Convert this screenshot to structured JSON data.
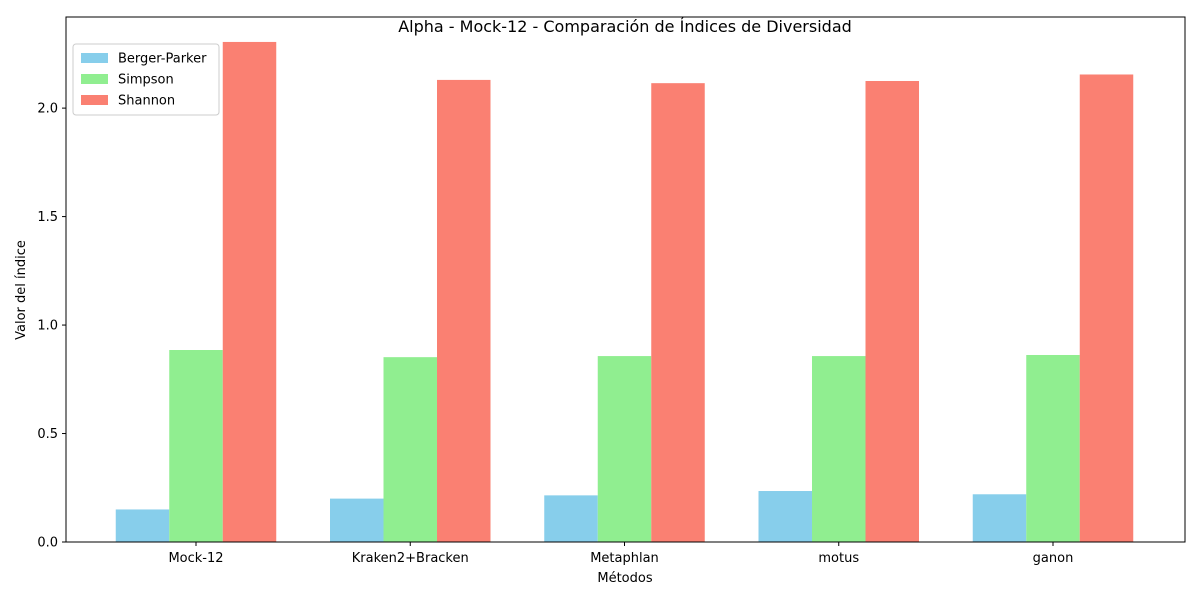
{
  "chart_data": {
    "type": "bar",
    "title": "Alpha - Mock-12 - Comparación de Índices de Diversidad",
    "xlabel": "Métodos",
    "ylabel": "Valor del índice",
    "categories": [
      "Mock-12",
      "Kraken2+Bracken",
      "Metaphlan",
      "motus",
      "ganon"
    ],
    "series": [
      {
        "name": "Berger-Parker",
        "color": "#87ceeb",
        "values": [
          0.15,
          0.2,
          0.215,
          0.235,
          0.22
        ]
      },
      {
        "name": "Simpson",
        "color": "#90ee90",
        "values": [
          0.885,
          0.852,
          0.857,
          0.857,
          0.862
        ]
      },
      {
        "name": "Shannon",
        "color": "#fa8072",
        "values": [
          2.305,
          2.13,
          2.115,
          2.125,
          2.155
        ]
      }
    ],
    "ylim": [
      0,
      2.42
    ],
    "yticks": [
      0.0,
      0.5,
      1.0,
      1.5,
      2.0
    ],
    "ytick_labels": [
      "0.0",
      "0.5",
      "1.0",
      "1.5",
      "2.0"
    ],
    "grid": false,
    "legend_position": "top-left"
  }
}
